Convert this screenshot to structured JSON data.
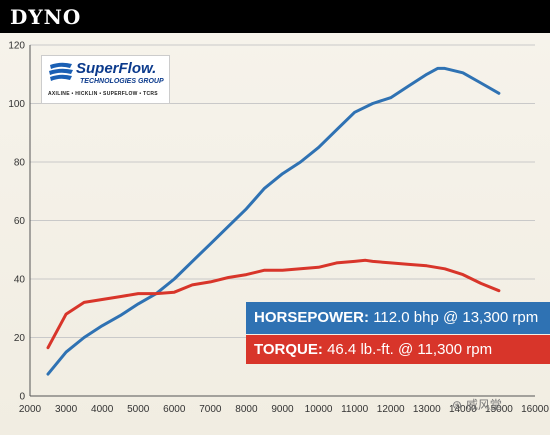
{
  "header": {
    "title": "DYNO"
  },
  "logo": {
    "brand": "SuperFlow.",
    "subtitle": "TECHNOLOGIES GROUP",
    "brands_line": "AXILINE • HICKLIN • SUPERFLOW • TCRS"
  },
  "legend": {
    "horsepower": {
      "name": "HORSEPOWER:",
      "value": "112.0 bhp @ 13,300 rpm"
    },
    "torque": {
      "name": "TORQUE:",
      "value": "46.4 lb.-ft. @ 11,300 rpm"
    }
  },
  "watermark": "⊛ 威风堂",
  "colors": {
    "horsepower": "#2f72b3",
    "torque": "#d8352a",
    "grid": "#c9c9c9"
  },
  "chart_data": {
    "type": "line",
    "title": "",
    "xlabel": "",
    "ylabel": "",
    "xlim": [
      2000,
      16000
    ],
    "ylim": [
      0,
      120
    ],
    "x_ticks": [
      2000,
      3000,
      4000,
      5000,
      6000,
      7000,
      8000,
      9000,
      10000,
      11000,
      12000,
      13000,
      14000,
      15000,
      16000
    ],
    "x_tick_labels": [
      "2000",
      "3000",
      "4000",
      "5000",
      "6000",
      "7000",
      "8000",
      "9000",
      "10000",
      "11000",
      "12000",
      "13000",
      "14000",
      "15000",
      "16000"
    ],
    "y_ticks": [
      0,
      20,
      40,
      60,
      80,
      100,
      120
    ],
    "y_tick_labels": [
      "0",
      "20",
      "40",
      "60",
      "80",
      "100",
      "120"
    ],
    "grid": true,
    "series": [
      {
        "name": "HORSEPOWER",
        "color": "#2f72b3",
        "points": [
          [
            2500,
            7.5
          ],
          [
            3000,
            15
          ],
          [
            3500,
            20
          ],
          [
            4000,
            24
          ],
          [
            4500,
            27.5
          ],
          [
            5000,
            31.5
          ],
          [
            5500,
            35
          ],
          [
            6000,
            40
          ],
          [
            6500,
            46
          ],
          [
            7000,
            52
          ],
          [
            7500,
            58
          ],
          [
            8000,
            64
          ],
          [
            8500,
            71
          ],
          [
            9000,
            76
          ],
          [
            9500,
            80
          ],
          [
            10000,
            85
          ],
          [
            10500,
            91
          ],
          [
            11000,
            97
          ],
          [
            11500,
            100
          ],
          [
            12000,
            102
          ],
          [
            12500,
            106
          ],
          [
            13000,
            110
          ],
          [
            13300,
            112
          ],
          [
            13500,
            112
          ],
          [
            14000,
            110.5
          ],
          [
            14500,
            107
          ],
          [
            15000,
            103.5
          ]
        ]
      },
      {
        "name": "TORQUE",
        "color": "#d8352a",
        "points": [
          [
            2500,
            16.5
          ],
          [
            3000,
            28
          ],
          [
            3500,
            32
          ],
          [
            4000,
            33
          ],
          [
            4500,
            34
          ],
          [
            5000,
            35
          ],
          [
            5500,
            35
          ],
          [
            6000,
            35.5
          ],
          [
            6500,
            38
          ],
          [
            7000,
            39
          ],
          [
            7500,
            40.5
          ],
          [
            8000,
            41.5
          ],
          [
            8500,
            43
          ],
          [
            9000,
            43
          ],
          [
            9500,
            43.5
          ],
          [
            10000,
            44
          ],
          [
            10500,
            45.5
          ],
          [
            11000,
            46
          ],
          [
            11300,
            46.4
          ],
          [
            11500,
            46
          ],
          [
            12000,
            45.5
          ],
          [
            12500,
            45
          ],
          [
            13000,
            44.5
          ],
          [
            13500,
            43.5
          ],
          [
            14000,
            41.5
          ],
          [
            14500,
            38.5
          ],
          [
            15000,
            36
          ]
        ]
      }
    ]
  }
}
